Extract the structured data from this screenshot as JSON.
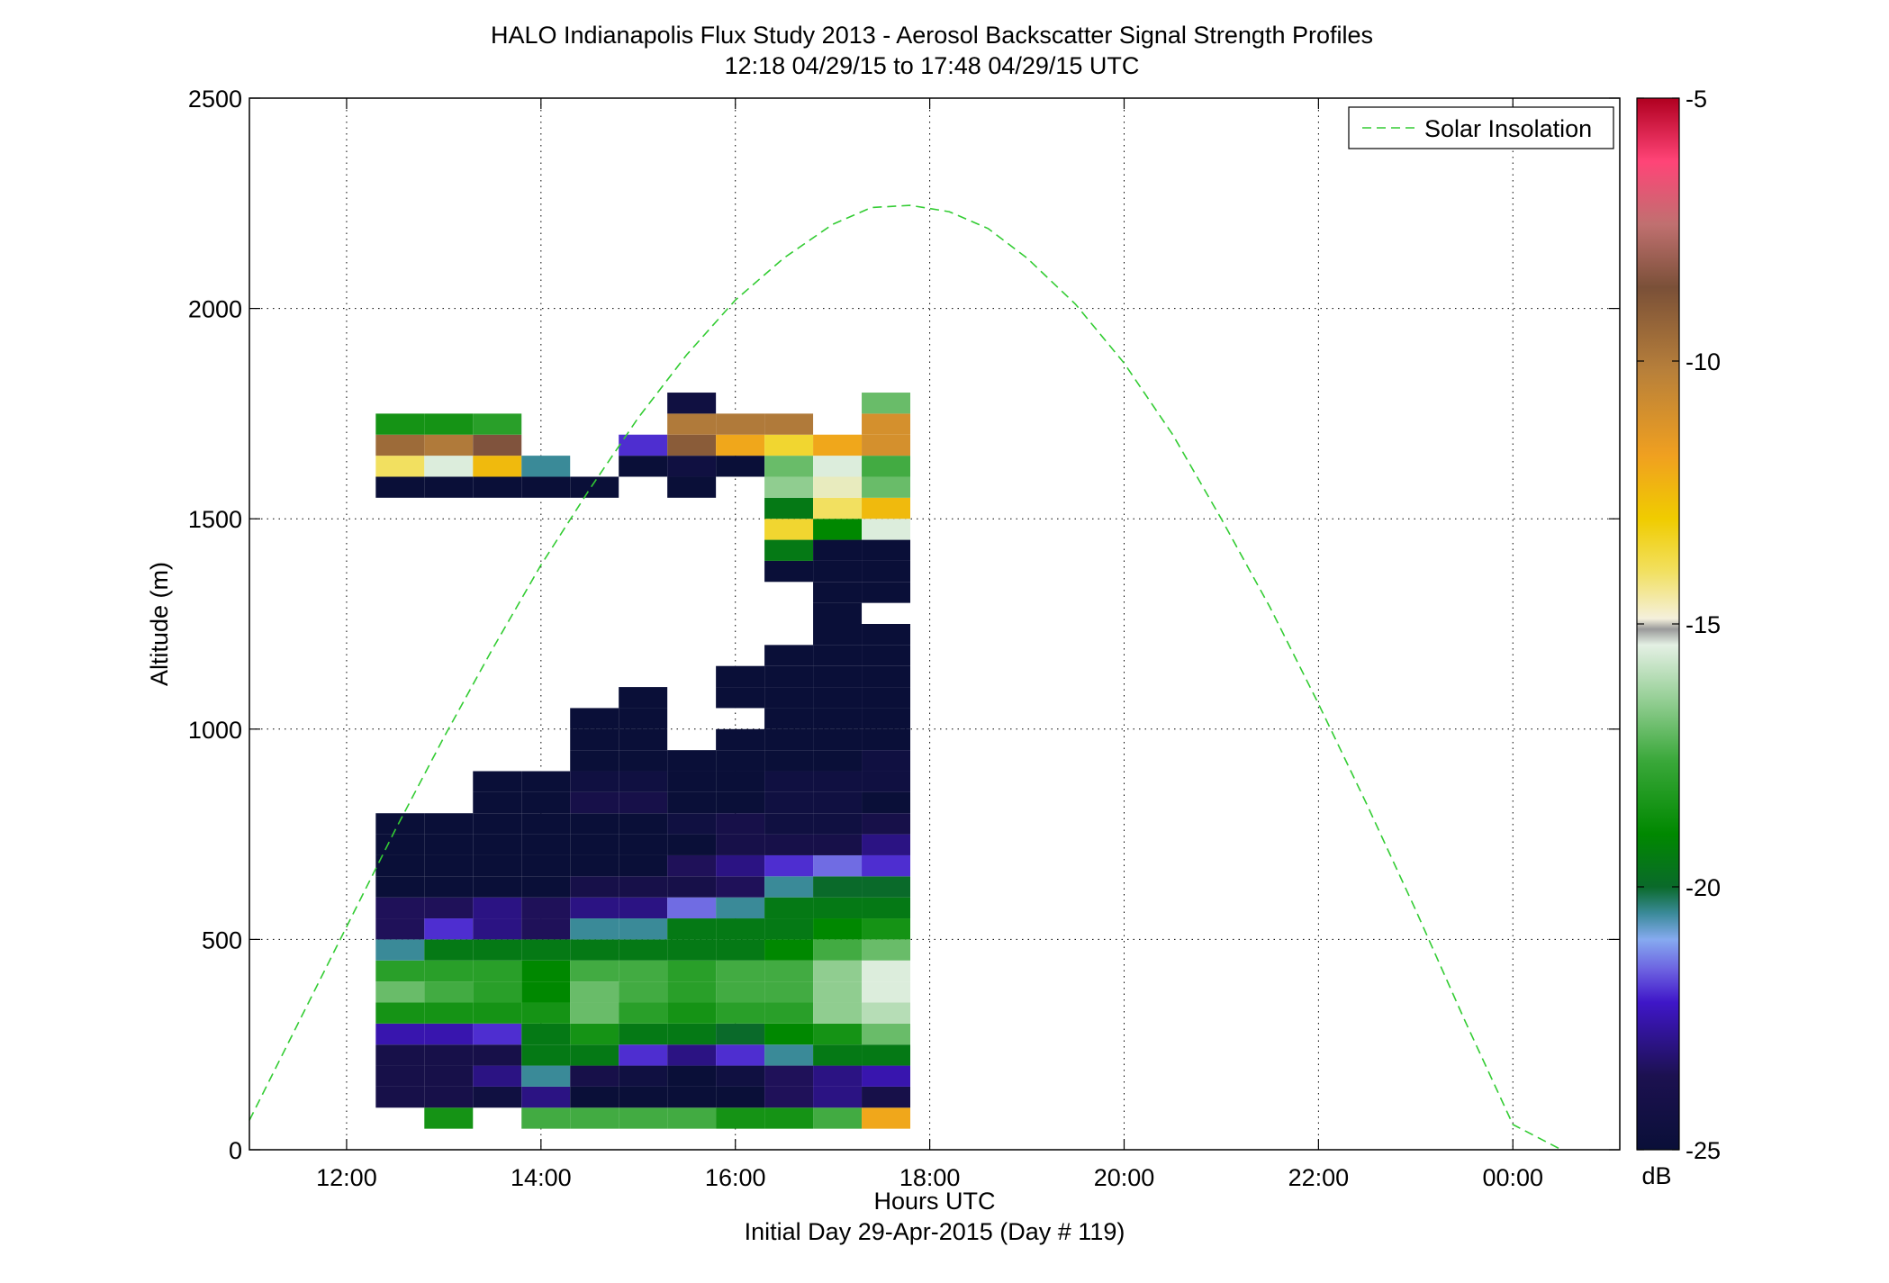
{
  "chart_data": {
    "type": "heatmap",
    "title": "HALO Indianapolis Flux Study 2013 - Aerosol Backscatter Signal Strength Profiles",
    "subtitle": "12:18 04/29/15 to 17:48 04/29/15  UTC",
    "xlabel": "Hours UTC",
    "xlabel2": "Initial Day 29-Apr-2015 (Day # 119)",
    "ylabel": "Altitude (m)",
    "xlim": [
      11.0,
      25.1
    ],
    "ylim": [
      0,
      2500
    ],
    "x_ticks": [
      12,
      14,
      16,
      18,
      20,
      22,
      24
    ],
    "x_tick_labels": [
      "12:00",
      "14:00",
      "16:00",
      "18:00",
      "20:00",
      "22:00",
      "00:00"
    ],
    "y_ticks": [
      0,
      500,
      1000,
      1500,
      2000,
      2500
    ],
    "y_tick_labels": [
      "0",
      "500",
      "1000",
      "1500",
      "2000",
      "2500"
    ],
    "grid": true,
    "legend": {
      "position": "top-right",
      "entries": [
        "Solar Insolation"
      ]
    },
    "colorbar": {
      "unit": "dB",
      "range": [
        -25,
        -5
      ],
      "ticks": [
        -25,
        -20,
        -15,
        -10,
        -5
      ],
      "tick_labels": [
        "-25",
        "-20",
        "-15",
        "-10",
        "-5"
      ]
    },
    "cell": {
      "time_width_hours": 0.5,
      "altitude_height_m": 50
    },
    "time_starts": [
      12.3,
      12.8,
      13.3,
      13.8,
      14.3,
      14.8,
      15.3,
      15.8,
      16.3,
      16.8,
      17.3
    ],
    "altitude_starts": [
      50,
      100,
      150,
      200,
      250,
      300,
      350,
      400,
      450,
      500,
      550,
      600,
      650,
      700,
      750,
      800,
      850,
      900,
      950,
      1000,
      1050,
      1100,
      1150,
      1200,
      1250,
      1300,
      1350,
      1400,
      1450,
      1500,
      1550,
      1600,
      1650,
      1700,
      1750,
      1800
    ],
    "backscatter_db": [
      [
        null,
        -18.5,
        null,
        -17.5,
        -17.5,
        -17.5,
        -17.5,
        -18.5,
        -18.5,
        -17.5,
        -12
      ],
      [
        -24,
        -24,
        -24.5,
        -23,
        -25,
        -25,
        -25,
        -25,
        -23.5,
        -23,
        -24
      ],
      [
        -24,
        -24,
        -23,
        -20.5,
        -24,
        -24.5,
        -25,
        -24.5,
        -23.5,
        -23,
        -22.5
      ],
      [
        -24,
        -24,
        -24,
        -19.5,
        -19.5,
        -22,
        -23,
        -22,
        -20.5,
        -19.5,
        -19.5
      ],
      [
        -22.5,
        -22.5,
        -22,
        -19.5,
        -18.5,
        -19.5,
        -19.5,
        -20,
        -19,
        -18.5,
        -17
      ],
      [
        -18.5,
        -18.5,
        -18.5,
        -18.5,
        -17,
        -18,
        -18.5,
        -18,
        -18,
        -16.5,
        -16
      ],
      [
        -17,
        -17.5,
        -18,
        -19,
        -17,
        -17.5,
        -18,
        -17.5,
        -17.5,
        -16.5,
        -15.5
      ],
      [
        -18,
        -18,
        -18,
        -19,
        -17.5,
        -17.5,
        -18,
        -17.5,
        -17.5,
        -16.5,
        -15.5
      ],
      [
        -20.5,
        -19.5,
        -19.5,
        -19.5,
        -19.5,
        -19.5,
        -19.5,
        -19.5,
        -19,
        -17.5,
        -17
      ],
      [
        -23.5,
        -22,
        -23,
        -23.5,
        -20.5,
        -20.5,
        -19.5,
        -19.5,
        -19.5,
        -19,
        -18.5
      ],
      [
        -23.5,
        -23.5,
        -23,
        -23.5,
        -23,
        -23,
        -21.5,
        -20.5,
        -19.5,
        -19.5,
        -19.5
      ],
      [
        -25,
        -25,
        -25,
        -25,
        -24,
        -24,
        -24,
        -23.5,
        -20.5,
        -20,
        -20
      ],
      [
        -25,
        -25,
        -25,
        -25,
        -25,
        -25,
        -23.5,
        -23,
        -22,
        -21.5,
        -22
      ],
      [
        -25,
        -25,
        -25,
        -25,
        -25,
        -25,
        -25,
        -24,
        -24,
        -24,
        -23
      ],
      [
        -25,
        -25,
        -25,
        -25,
        -25,
        -25,
        -24.5,
        -24,
        -24.5,
        -24.5,
        -24
      ],
      [
        null,
        null,
        -25,
        -25,
        -24,
        -24,
        -25,
        -25,
        -24.5,
        -24.5,
        -25
      ],
      [
        null,
        null,
        -25,
        -25,
        -24.5,
        -24.5,
        -25,
        -25,
        -24.5,
        -24.5,
        -24.5
      ],
      [
        null,
        null,
        null,
        null,
        -25,
        -25,
        -25,
        -25,
        -25,
        -25,
        -24.5
      ],
      [
        null,
        null,
        null,
        null,
        -25,
        -25,
        null,
        -25,
        -25,
        -25,
        -25
      ],
      [
        null,
        null,
        null,
        null,
        -25,
        -25,
        null,
        null,
        -25,
        -25,
        -25
      ],
      [
        null,
        null,
        null,
        null,
        null,
        -25,
        null,
        -25,
        -25,
        -25,
        -25
      ],
      [
        null,
        null,
        null,
        null,
        null,
        null,
        null,
        -25,
        -25,
        -25,
        -25
      ],
      [
        null,
        null,
        null,
        null,
        null,
        null,
        null,
        null,
        -25,
        -25,
        -25
      ],
      [
        null,
        null,
        null,
        null,
        null,
        null,
        null,
        null,
        null,
        -25,
        -25
      ],
      [
        null,
        null,
        null,
        null,
        null,
        null,
        null,
        null,
        null,
        -25,
        null
      ],
      [
        null,
        null,
        null,
        null,
        null,
        null,
        null,
        null,
        null,
        -25,
        -25
      ],
      [
        null,
        null,
        null,
        null,
        null,
        null,
        null,
        null,
        -25,
        -25,
        -25
      ],
      [
        null,
        null,
        null,
        null,
        null,
        null,
        null,
        null,
        -19.5,
        -25,
        -25
      ],
      [
        null,
        null,
        null,
        null,
        null,
        null,
        null,
        null,
        -13.5,
        -19,
        -15.5
      ],
      [
        null,
        null,
        null,
        null,
        null,
        null,
        null,
        null,
        -19.5,
        -14,
        -12.5
      ],
      [
        -25,
        -25,
        -25,
        -25,
        -25,
        null,
        -25,
        null,
        -16.5,
        -15,
        -17
      ],
      [
        -14,
        -15.5,
        -12.5,
        -20.5,
        null,
        -25,
        -24.5,
        -25,
        -17,
        -15.5,
        -17.5
      ],
      [
        -9.5,
        -10,
        -8.5,
        null,
        null,
        -22,
        -9,
        -12,
        -13.5,
        -12,
        -11
      ],
      [
        -18.5,
        -18.5,
        -18,
        null,
        null,
        null,
        -10,
        -10,
        -10,
        null,
        -11
      ],
      [
        null,
        null,
        null,
        null,
        null,
        null,
        -24.5,
        null,
        null,
        null,
        -17
      ],
      [
        null,
        null,
        null,
        null,
        null,
        null,
        null,
        null,
        null,
        null,
        null
      ]
    ],
    "solar_insolation": {
      "name": "Solar Insolation",
      "x": [
        11,
        11.5,
        12,
        12.5,
        13,
        13.5,
        14,
        14.5,
        15,
        15.5,
        16,
        16.5,
        17,
        17.4,
        17.8,
        18.2,
        18.6,
        19,
        19.5,
        20,
        20.5,
        21,
        21.5,
        22,
        22.5,
        23,
        23.5,
        24,
        24.5
      ],
      "y": [
        70,
        300,
        530,
        760,
        980,
        1190,
        1390,
        1570,
        1740,
        1890,
        2020,
        2120,
        2200,
        2240,
        2245,
        2230,
        2190,
        2120,
        2010,
        1870,
        1700,
        1500,
        1290,
        1060,
        820,
        570,
        310,
        60,
        -20
      ]
    }
  }
}
